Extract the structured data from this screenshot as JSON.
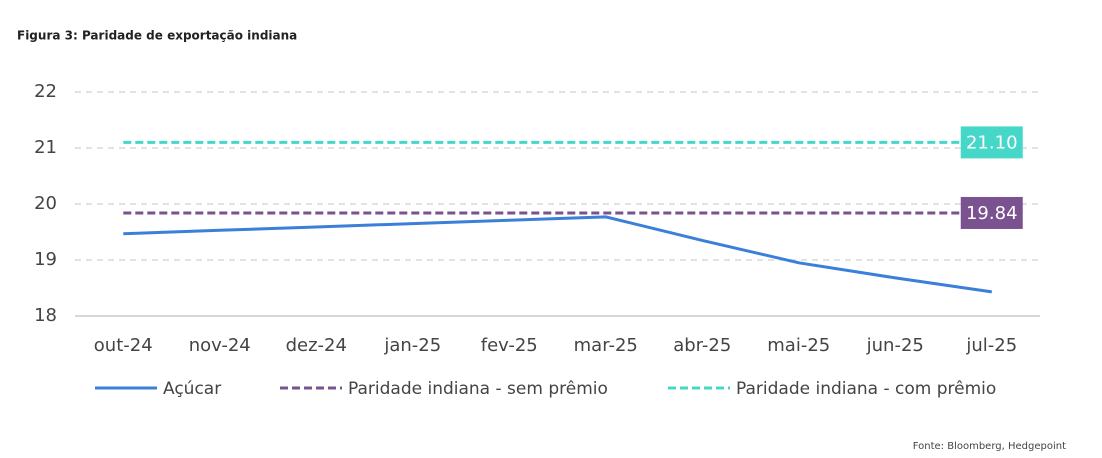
{
  "chart_data": {
    "type": "line",
    "title": "Figura 3: Paridade de exportação indiana",
    "source": "Fonte: Bloomberg, Hedgepoint",
    "categories": [
      "out-24",
      "nov-24",
      "dez-24",
      "jan-25",
      "fev-25",
      "mar-25",
      "abr-25",
      "mai-25",
      "jun-25",
      "jul-25"
    ],
    "series": [
      {
        "name": "Açúcar",
        "color": "#3c7fd9",
        "style": "solid",
        "values": [
          19.47,
          19.53,
          19.59,
          19.65,
          19.71,
          19.77,
          19.35,
          18.95,
          18.68,
          18.43
        ]
      },
      {
        "name": "Paridade indiana - sem prêmio",
        "color": "#7a5290",
        "style": "dashed",
        "values": [
          19.84,
          19.84,
          19.84,
          19.84,
          19.84,
          19.84,
          19.84,
          19.84,
          19.84,
          19.84
        ],
        "value_labels": [
          null,
          null,
          null,
          null,
          null,
          null,
          null,
          null,
          null,
          "19.84"
        ]
      },
      {
        "name": "Paridade indiana - com prêmio",
        "color": "#45d8c8",
        "style": "dashed",
        "values": [
          21.1,
          21.1,
          21.1,
          21.1,
          21.1,
          21.1,
          21.1,
          21.1,
          21.1,
          21.1
        ],
        "value_labels": [
          null,
          null,
          null,
          null,
          null,
          null,
          null,
          null,
          null,
          "21.10"
        ]
      }
    ],
    "ylim": [
      18,
      22
    ],
    "yticks": [
      18,
      19,
      20,
      21,
      22
    ],
    "grid": true,
    "legend": "bottom"
  }
}
